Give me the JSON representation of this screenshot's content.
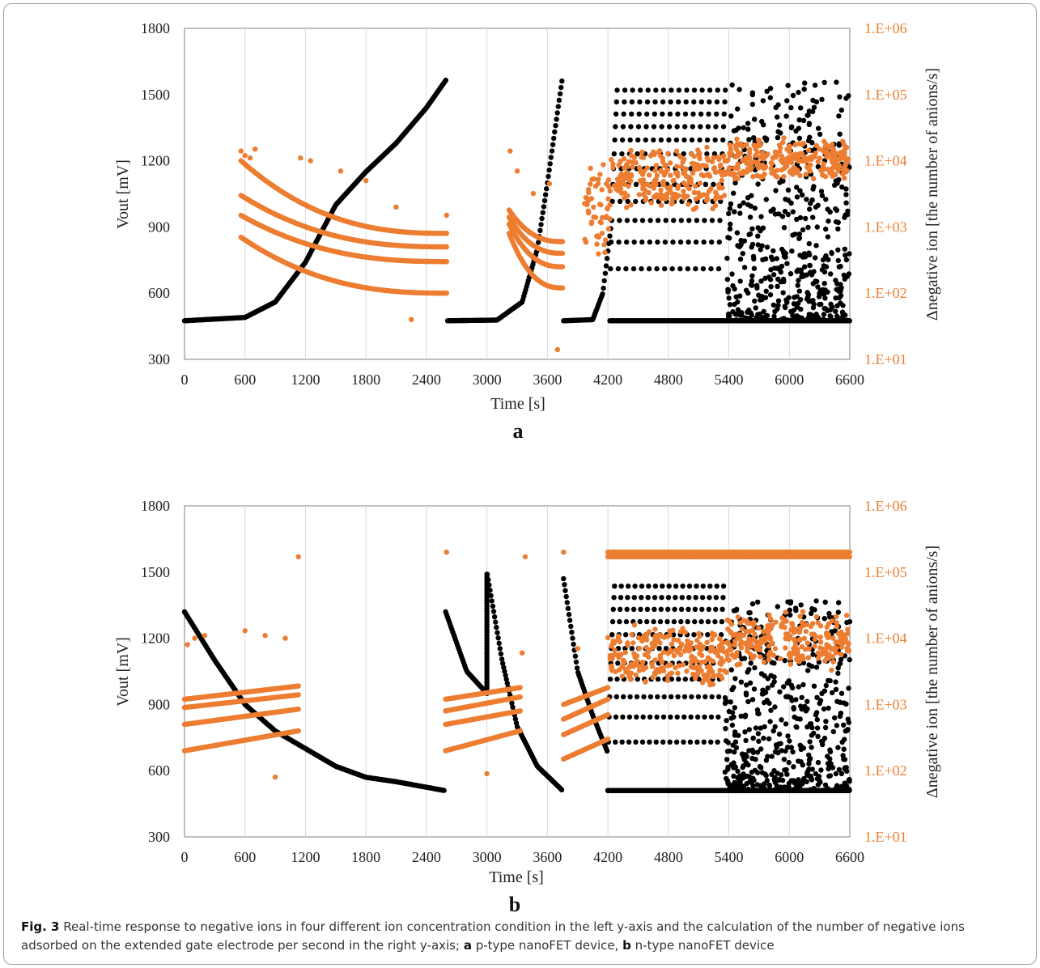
{
  "chart_data": [
    {
      "type": "scatter",
      "panel_label": "a",
      "xlabel": "Time [s]",
      "ylabel": "Vout [mV]",
      "y2label": "Δnegative ion [the number of anions/s]",
      "xlim": [
        0,
        6600
      ],
      "ylim": [
        300,
        1800
      ],
      "y2lim": [
        10,
        1000000
      ],
      "y2scale": "log",
      "xticks": [
        "0",
        "600",
        "1200",
        "1800",
        "2400",
        "3000",
        "3600",
        "4200",
        "4800",
        "5400",
        "6000",
        "6600"
      ],
      "yticks": [
        "1800",
        "1500",
        "1200",
        "900",
        "600",
        "300"
      ],
      "y2ticks": [
        "1.E+06",
        "1.E+05",
        "1.E+04",
        "1.E+03",
        "1.E+02",
        "1.E+01"
      ],
      "grid": "vertical",
      "series": [
        {
          "axis": "left",
          "color": "#000000",
          "segments": [
            {
              "type": "ramp",
              "x": [
                0,
                600,
                900,
                1200,
                1500,
                1800,
                2100,
                2400,
                2600
              ],
              "y": [
                475,
                490,
                560,
                740,
                1000,
                1150,
                1280,
                1440,
                1570
              ]
            },
            {
              "type": "ramp",
              "x": [
                2610,
                3100,
                3350,
                3500,
                3600,
                3750
              ],
              "y": [
                475,
                478,
                560,
                800,
                1100,
                1580
              ]
            },
            {
              "type": "ramp",
              "x": [
                3760,
                4050,
                4150,
                4230
              ],
              "y": [
                475,
                480,
                600,
                900
              ]
            },
            {
              "type": "pulses",
              "x_start": 4220,
              "x_end": 5370,
              "count": 15,
              "y_low": 475,
              "y_high": 1560
            },
            {
              "type": "noise",
              "x_start": 5380,
              "x_end": 6600,
              "y_low": 475,
              "y_high": 1560
            }
          ]
        },
        {
          "axis": "right",
          "color": "#ED7D31",
          "segments": [
            {
              "type": "decay_bands",
              "x_start": 560,
              "x_end": 2600,
              "start": [
                10000,
                3000,
                1500,
                700
              ],
              "end": [
                800,
                500,
                300,
                100
              ],
              "outliers": [
                [
                  560,
                  14000
                ],
                [
                  600,
                  12000
                ],
                [
                  650,
                  11000
                ],
                [
                  700,
                  15000
                ],
                [
                  1150,
                  11000
                ],
                [
                  1250,
                  10000
                ],
                [
                  1550,
                  7000
                ],
                [
                  1800,
                  5000
                ],
                [
                  2100,
                  2000
                ],
                [
                  2250,
                  40
                ],
                [
                  2600,
                  1500
                ]
              ]
            },
            {
              "type": "decay_bands",
              "x_start": 3220,
              "x_end": 3750,
              "start": [
                1800,
                1400,
                1100,
                800
              ],
              "end": [
                600,
                400,
                250,
                120
              ],
              "outliers": [
                [
                  3230,
                  14000
                ],
                [
                  3300,
                  7000
                ],
                [
                  3460,
                  3200
                ],
                [
                  3620,
                  4500
                ],
                [
                  3700,
                  14
                ]
              ]
            },
            {
              "type": "cluster",
              "x_start": 3960,
              "x_end": 4230,
              "y_low": 300,
              "y_high": 15000
            },
            {
              "type": "cluster",
              "x_start": 4230,
              "x_end": 5380,
              "y_low": 1500,
              "y_high": 20000
            },
            {
              "type": "cluster",
              "x_start": 5380,
              "x_end": 6600,
              "y_low": 4000,
              "y_high": 25000
            }
          ]
        }
      ]
    },
    {
      "type": "scatter",
      "panel_label": "b",
      "xlabel": "Time [s]",
      "ylabel": "Vout [mV]",
      "y2label": "Δnegative ion [the number of anions/s]",
      "xlim": [
        0,
        6600
      ],
      "ylim": [
        300,
        1800
      ],
      "y2lim": [
        10,
        1000000
      ],
      "y2scale": "log",
      "xticks": [
        "0",
        "600",
        "1200",
        "1800",
        "2400",
        "3000",
        "3600",
        "4200",
        "4800",
        "5400",
        "6000",
        "6600"
      ],
      "yticks": [
        "1800",
        "1500",
        "1200",
        "900",
        "600",
        "300"
      ],
      "y2ticks": [
        "1.E+06",
        "1.E+05",
        "1.E+04",
        "1.E+03",
        "1.E+02",
        "1.E+01"
      ],
      "grid": "vertical",
      "series": [
        {
          "axis": "left",
          "color": "#000000",
          "segments": [
            {
              "type": "ramp",
              "x": [
                0,
                300,
                600,
                900,
                1200,
                1500,
                1800,
                2100,
                2400,
                2580
              ],
              "y": [
                1320,
                1100,
                900,
                780,
                700,
                620,
                570,
                550,
                525,
                510
              ]
            },
            {
              "type": "ramp",
              "x": [
                2590,
                2800,
                3000,
                3000,
                3150,
                3300,
                3500,
                3750
              ],
              "y": [
                1320,
                1050,
                950,
                1500,
                1100,
                800,
                620,
                510
              ]
            },
            {
              "type": "ramp",
              "x": [
                3760,
                3900,
                4050,
                4200
              ],
              "y": [
                1470,
                1050,
                850,
                680
              ]
            },
            {
              "type": "pulses",
              "x_start": 4200,
              "x_end": 5350,
              "count": 17,
              "y_low": 510,
              "y_high": 1450
            },
            {
              "type": "noise",
              "x_start": 5360,
              "x_end": 6600,
              "y_low": 510,
              "y_high": 1370
            }
          ]
        },
        {
          "axis": "right",
          "color": "#ED7D31",
          "segments": [
            {
              "type": "rise_bands",
              "x_start": 0,
              "x_end": 1130,
              "start": [
                1200,
                900,
                500,
                200
              ],
              "end": [
                1900,
                1400,
                850,
                400
              ],
              "outliers": [
                [
                  30,
                  8000
                ],
                [
                  100,
                  10000
                ],
                [
                  200,
                  11000
                ],
                [
                  600,
                  13000
                ],
                [
                  800,
                  11000
                ],
                [
                  1000,
                  10000
                ],
                [
                  1130,
                  170000
                ],
                [
                  900,
                  80
                ]
              ]
            },
            {
              "type": "rise_bands",
              "x_start": 2590,
              "x_end": 3330,
              "start": [
                1200,
                800,
                500,
                200
              ],
              "end": [
                1800,
                1300,
                800,
                400
              ],
              "outliers": [
                [
                  2600,
                  200000
                ],
                [
                  3000,
                  90
                ],
                [
                  3350,
                  6000
                ],
                [
                  3380,
                  170000
                ]
              ]
            },
            {
              "type": "rise_bands",
              "x_start": 3760,
              "x_end": 4200,
              "start": [
                1000,
                600,
                350,
                150
              ],
              "end": [
                1800,
                1200,
                700,
                300
              ],
              "outliers": [
                [
                  3760,
                  200000
                ],
                [
                  3900,
                  7000
                ]
              ]
            },
            {
              "type": "cluster",
              "x_start": 4200,
              "x_end": 5380,
              "y_low": 1500,
              "y_high": 20000
            },
            {
              "type": "cluster",
              "x_start": 5380,
              "x_end": 6600,
              "y_low": 3000,
              "y_high": 30000
            },
            {
              "type": "band",
              "x_start": 4200,
              "x_end": 6600,
              "y": 170000
            },
            {
              "type": "band",
              "x_start": 4200,
              "x_end": 6600,
              "y": 200000
            }
          ]
        }
      ]
    }
  ],
  "caption": {
    "fig_label": "Fig. 3",
    "text_1": " Real-time response to negative ions in four different ion concentration condition in the left y-axis and the calculation of the number of negative ions adsorbed on the extended gate electrode per second in the right y-axis; ",
    "label_a": "a",
    "text_2": " p-type nanoFET device, ",
    "label_b": "b",
    "text_3": " n-type nanoFET device"
  }
}
